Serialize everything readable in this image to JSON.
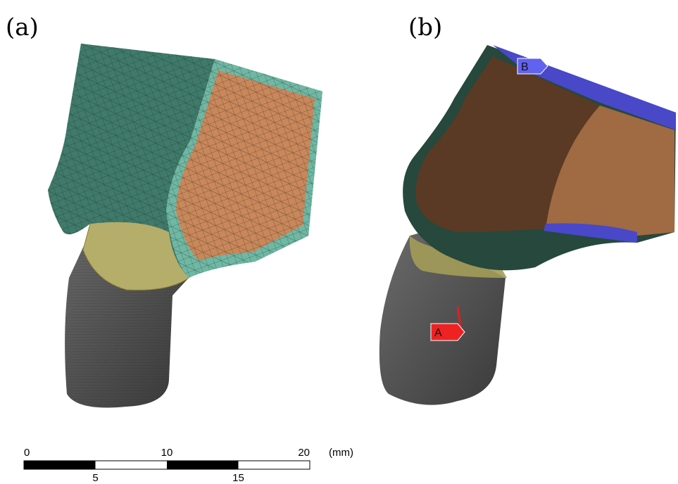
{
  "panels": [
    {
      "label": "(a)"
    },
    {
      "label": "(b)",
      "markers": [
        "A",
        "B"
      ]
    }
  ],
  "scale_bar": {
    "top_labels": [
      0,
      10,
      20
    ],
    "bottom_labels": [
      5,
      15
    ],
    "unit": "(mm)"
  }
}
